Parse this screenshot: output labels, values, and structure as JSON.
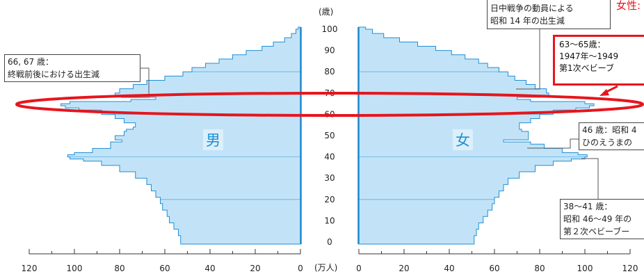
{
  "chart_data": {
    "type": "population-pyramid",
    "age_axis": {
      "unit": "(歳)",
      "ticks": [
        0,
        10,
        20,
        30,
        40,
        50,
        60,
        70,
        80,
        90,
        100
      ],
      "range": [
        0,
        100
      ]
    },
    "x_axis": {
      "unit": "(万人)",
      "left_ticks": [
        120,
        100,
        80,
        60,
        40,
        20,
        0
      ],
      "right_ticks": [
        0,
        20,
        40,
        60,
        80,
        100,
        120
      ],
      "range": [
        0,
        120
      ]
    },
    "series": [
      {
        "name": "男",
        "side": "left",
        "ages": [
          0,
          3,
          6,
          9,
          12,
          15,
          18,
          21,
          24,
          27,
          30,
          33,
          36,
          38,
          39,
          40,
          41,
          42,
          44,
          47,
          48,
          50,
          52,
          53,
          54,
          56,
          58,
          60,
          62,
          63,
          64,
          65,
          66,
          67,
          68,
          69,
          70,
          72,
          74,
          76,
          78,
          80,
          82,
          84,
          86,
          88,
          90,
          92,
          94,
          96,
          98,
          100
        ],
        "values": [
          53,
          54,
          56,
          58,
          59,
          61,
          62,
          64,
          66,
          68,
          73,
          80,
          88,
          96,
          102,
          103,
          100,
          92,
          84,
          79,
          82,
          78,
          77,
          74,
          73,
          78,
          82,
          88,
          98,
          104,
          106,
          102,
          75,
          64,
          78,
          82,
          80,
          74,
          68,
          60,
          52,
          48,
          42,
          36,
          30,
          24,
          17,
          12,
          7,
          4,
          2,
          1
        ]
      },
      {
        "name": "女",
        "side": "right",
        "ages": [
          0,
          3,
          6,
          9,
          12,
          15,
          18,
          21,
          24,
          27,
          30,
          33,
          36,
          38,
          39,
          40,
          41,
          42,
          44,
          46,
          47,
          48,
          50,
          52,
          53,
          54,
          56,
          58,
          60,
          62,
          63,
          64,
          65,
          66,
          67,
          68,
          69,
          70,
          72,
          74,
          76,
          78,
          80,
          82,
          84,
          86,
          88,
          90,
          92,
          94,
          96,
          98,
          100
        ],
        "values": [
          51,
          52,
          53,
          55,
          57,
          59,
          60,
          62,
          64,
          66,
          71,
          78,
          86,
          94,
          100,
          101,
          97,
          90,
          82,
          76,
          64,
          75,
          75,
          72,
          71,
          71,
          76,
          80,
          86,
          96,
          102,
          104,
          100,
          76,
          70,
          80,
          84,
          83,
          78,
          74,
          69,
          66,
          62,
          57,
          53,
          47,
          41,
          34,
          26,
          18,
          11,
          6,
          3
        ]
      }
    ],
    "annotations": {
      "top": "日中戦争の動員による\n昭和 14 年の出生減",
      "left": "66,  67 歳：\n終戦前後における出生減",
      "red_box": "63〜65歳：\n1947年〜1949\n第1次ベビーブ",
      "right_46": "46 歳：昭和 4\nひのえうまの",
      "right_38": "38〜41 歳：\n昭和 46〜49 年の\n第２次ベビーブー",
      "red_corner": "女性:"
    },
    "colors": {
      "fill": "#c2e3f7",
      "bar_stroke": "#1f8fd6",
      "axis": "#1a86cf",
      "highlight": "#e8141c"
    }
  }
}
